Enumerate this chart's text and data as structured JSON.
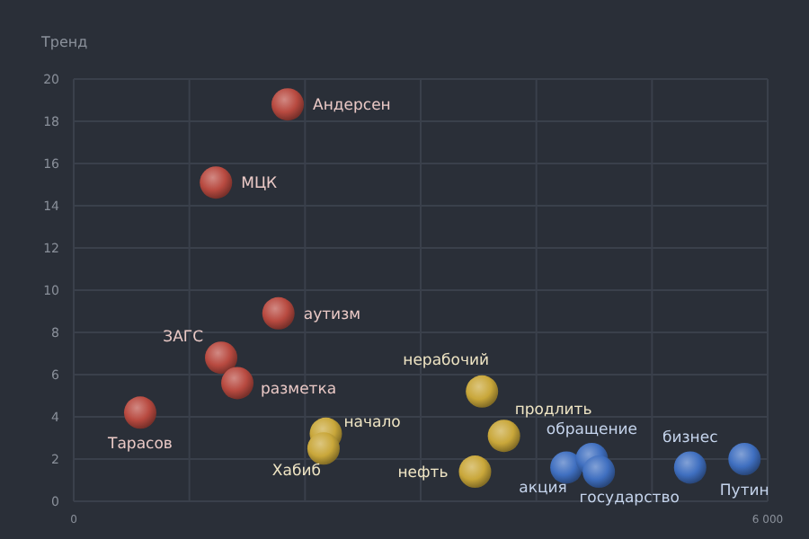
{
  "chart_data": {
    "type": "scatter",
    "ylabel": "Тренд",
    "xlim": [
      0,
      6000
    ],
    "ylim": [
      0,
      20
    ],
    "xticks": [
      0,
      {
        "value": 1000,
        "label": null
      },
      {
        "value": 2000,
        "label": null
      },
      {
        "value": 3000,
        "label": null
      },
      {
        "value": 4000,
        "label": null
      },
      {
        "value": 5000,
        "label": null
      },
      {
        "value": 6000,
        "label": "6 000"
      }
    ],
    "yticks": [
      0,
      2,
      4,
      6,
      8,
      10,
      12,
      14,
      16,
      18,
      20
    ],
    "grid": true,
    "marker": "circle",
    "series": [
      {
        "color": "#b84a40",
        "x": [
          1850,
          1230,
          1770,
          1275,
          1415,
          575
        ],
        "values": [
          18.8,
          15.1,
          8.9,
          6.8,
          5.6,
          4.2
        ]
      },
      {
        "color": "#c9a73a",
        "x": [
          2180,
          2160,
          3530,
          3720,
          3470
        ],
        "values": [
          3.2,
          2.5,
          5.2,
          3.1,
          1.4
        ]
      },
      {
        "color": "#3f6fc0",
        "x": [
          4260,
          4480,
          4540,
          5330,
          5800
        ],
        "values": [
          1.6,
          2.0,
          1.4,
          1.6,
          2.0
        ]
      }
    ],
    "annotations": [
      {
        "text": "Андерсен",
        "x": 1850,
        "y": 18.8
      },
      {
        "text": "МЦК",
        "x": 1230,
        "y": 15.1
      },
      {
        "text": "аутизм",
        "x": 1770,
        "y": 8.9
      },
      {
        "text": "ЗАГС",
        "x": 1275,
        "y": 6.8
      },
      {
        "text": "разметка",
        "x": 1415,
        "y": 5.6
      },
      {
        "text": "Тарасов",
        "x": 575,
        "y": 4.2
      },
      {
        "text": "начало",
        "x": 2180,
        "y": 3.2
      },
      {
        "text": "Хабиб",
        "x": 2160,
        "y": 2.5
      },
      {
        "text": "нерабочий",
        "x": 3530,
        "y": 5.2
      },
      {
        "text": "продлить",
        "x": 3720,
        "y": 3.1
      },
      {
        "text": "нефть",
        "x": 3470,
        "y": 1.4
      },
      {
        "text": "акция",
        "x": 4260,
        "y": 1.6
      },
      {
        "text": "обращение",
        "x": 4480,
        "y": 2.0
      },
      {
        "text": "государство",
        "x": 4540,
        "y": 1.4
      },
      {
        "text": "бизнес",
        "x": 5330,
        "y": 1.6
      },
      {
        "text": "Путин",
        "x": 5800,
        "y": 2.0
      }
    ]
  }
}
